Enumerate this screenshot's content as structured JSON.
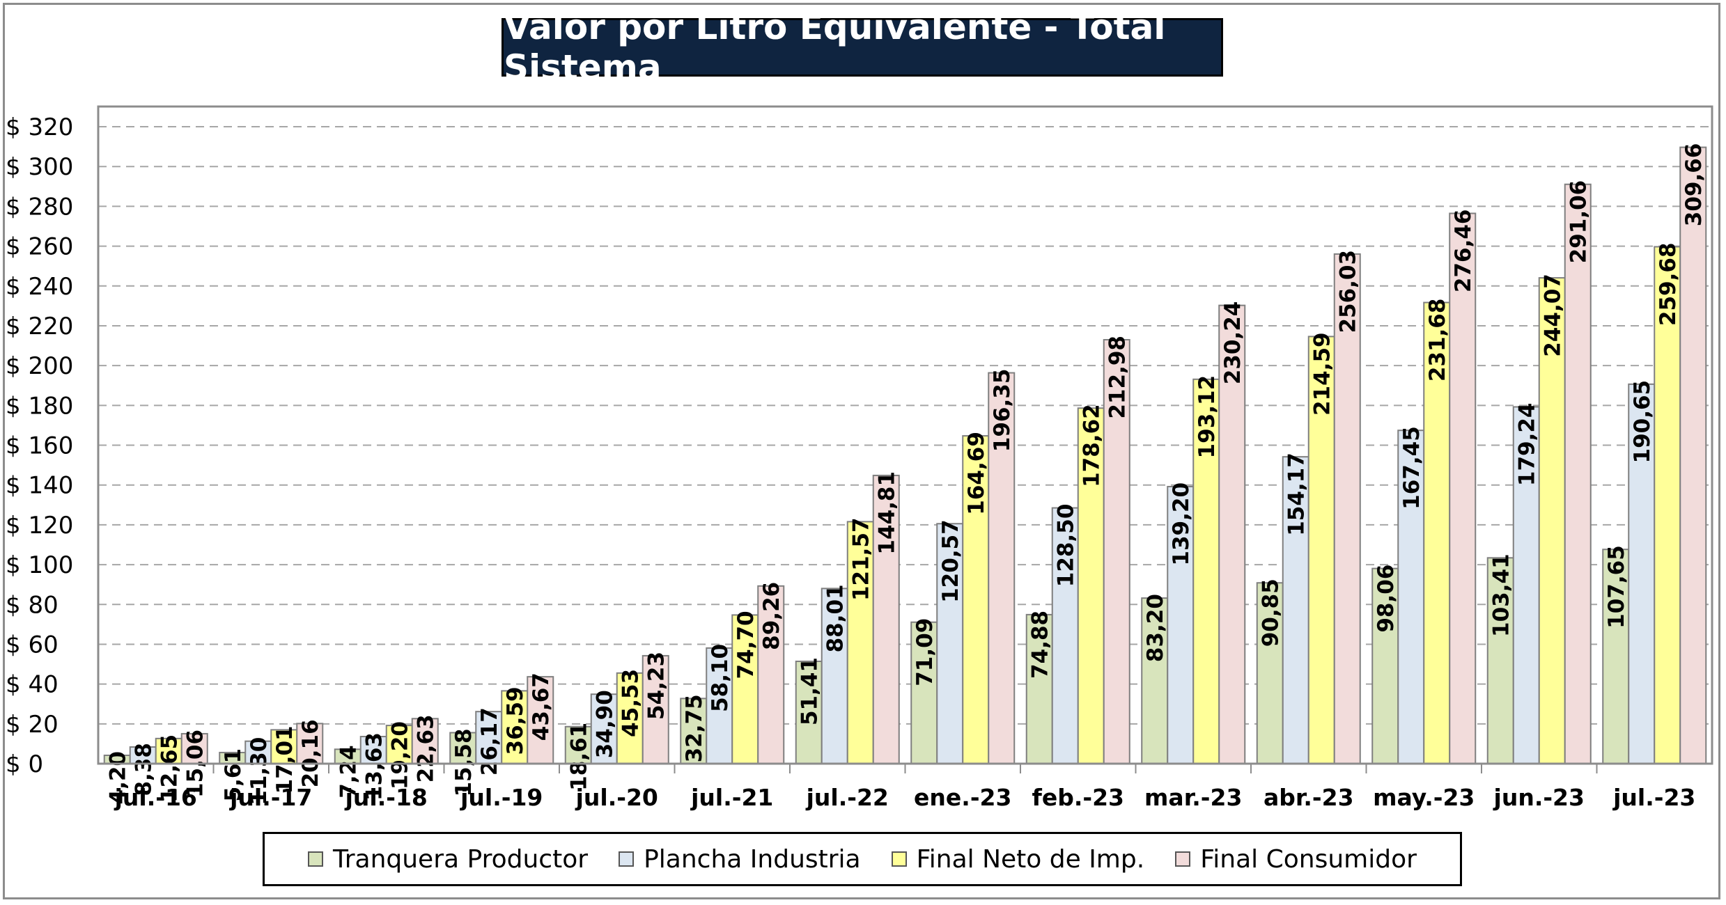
{
  "chart_data": {
    "type": "bar",
    "title": "Valor por Litro Equivalente - Total Sistema",
    "xlabel": "",
    "ylabel": "",
    "ylim": [
      0,
      320
    ],
    "y_tick_step": 20,
    "y_tick_prefix": "$ ",
    "grid": "horizontal-dashed",
    "legend_position": "bottom",
    "categories": [
      "jul.-16",
      "jul.-17",
      "jul.-18",
      "jul.-19",
      "jul.-20",
      "jul.-21",
      "jul.-22",
      "ene.-23",
      "feb.-23",
      "mar.-23",
      "abr.-23",
      "may.-23",
      "jun.-23",
      "jul.-23"
    ],
    "series": [
      {
        "name": "Tranquera Productor",
        "color": "#d8e4bc",
        "values": [
          4.2,
          5.61,
          7.24,
          15.58,
          18.61,
          32.75,
          51.41,
          71.09,
          74.88,
          83.2,
          90.85,
          98.06,
          103.41,
          107.65
        ],
        "labels": [
          "4,20",
          "5,61",
          "7,24",
          "15,58",
          "18,61",
          "32,75",
          "51,41",
          "71,09",
          "74,88",
          "83,20",
          "90,85",
          "98,06",
          "103,41",
          "107,65"
        ]
      },
      {
        "name": "Plancha Industria",
        "color": "#dce6f1",
        "values": [
          8.38,
          11.3,
          13.63,
          26.17,
          34.9,
          58.1,
          88.01,
          120.57,
          128.5,
          139.2,
          154.17,
          167.45,
          179.24,
          190.65
        ],
        "labels": [
          "8,38",
          "11,30",
          "13,63",
          "26,17",
          "34,90",
          "58,10",
          "88,01",
          "120,57",
          "128,50",
          "139,20",
          "154,17",
          "167,45",
          "179,24",
          "190,65"
        ]
      },
      {
        "name": "Final Neto de Imp.",
        "color": "#ffff99",
        "values": [
          12.65,
          17.01,
          19.2,
          36.59,
          45.53,
          74.7,
          121.57,
          164.69,
          178.62,
          193.12,
          214.59,
          231.68,
          244.07,
          259.68
        ],
        "labels": [
          "12,65",
          "17,01",
          "19,20",
          "36,59",
          "45,53",
          "74,70",
          "121,57",
          "164,69",
          "178,62",
          "193,12",
          "214,59",
          "231,68",
          "244,07",
          "259,68"
        ]
      },
      {
        "name": "Final Consumidor",
        "color": "#f2dcdb",
        "values": [
          15.06,
          20.16,
          22.63,
          43.67,
          54.23,
          89.26,
          144.81,
          196.35,
          212.98,
          230.24,
          256.03,
          276.46,
          291.06,
          309.66
        ],
        "labels": [
          "15,06",
          "20,16",
          "22,63",
          "43,67",
          "54,23",
          "89,26",
          "144,81",
          "196,35",
          "212,98",
          "230,24",
          "256,03",
          "276,46",
          "291,06",
          "309,66"
        ]
      }
    ]
  }
}
